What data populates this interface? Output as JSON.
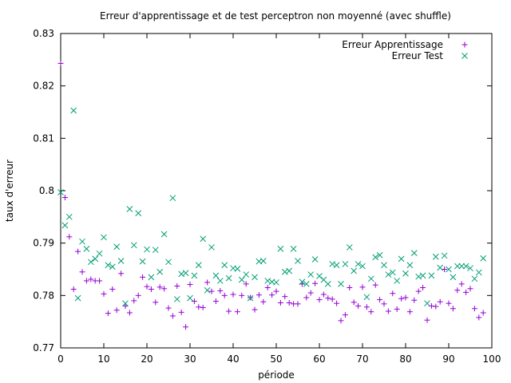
{
  "chart_data": {
    "type": "scatter",
    "title": "Erreur d'apprentissage et de test perceptron non moyenné (avec shuffle)",
    "xlabel": "période",
    "ylabel": "taux d'erreur",
    "xlim": [
      0,
      100
    ],
    "ylim": [
      0.77,
      0.83
    ],
    "x_ticks": [
      0,
      10,
      20,
      30,
      40,
      50,
      60,
      70,
      80,
      90,
      100
    ],
    "x_tick_labels": [
      "0",
      "10",
      "20",
      "30",
      "40",
      "50",
      "60",
      "70",
      "80",
      "90",
      "100"
    ],
    "y_ticks": [
      0.77,
      0.78,
      0.79,
      0.8,
      0.81,
      0.82,
      0.83
    ],
    "y_tick_labels": [
      "0.77",
      "0.78",
      "0.79",
      "0.8",
      "0.81",
      "0.82",
      "0.83"
    ],
    "grid": false,
    "legend_position": "top-right",
    "series": [
      {
        "name": "Erreur Apprentissage",
        "color": "#9400d3",
        "marker": "plus",
        "x": [
          0,
          1,
          2,
          3,
          4,
          5,
          6,
          7,
          8,
          9,
          10,
          11,
          12,
          13,
          14,
          15,
          16,
          17,
          18,
          19,
          20,
          21,
          22,
          23,
          24,
          25,
          26,
          27,
          28,
          29,
          30,
          31,
          32,
          33,
          34,
          35,
          36,
          37,
          38,
          39,
          40,
          41,
          42,
          43,
          44,
          45,
          46,
          47,
          48,
          49,
          50,
          51,
          52,
          53,
          54,
          55,
          56,
          57,
          58,
          59,
          60,
          61,
          62,
          63,
          64,
          65,
          66,
          67,
          68,
          69,
          70,
          71,
          72,
          73,
          74,
          75,
          76,
          77,
          78,
          79,
          80,
          81,
          82,
          83,
          84,
          85,
          86,
          87,
          88,
          89,
          90,
          91,
          92,
          93,
          94,
          95,
          96,
          97,
          98
        ],
        "y": [
          0.8243,
          0.7987,
          0.7912,
          0.7812,
          0.7884,
          0.7845,
          0.7828,
          0.7831,
          0.7828,
          0.7828,
          0.7803,
          0.7766,
          0.7812,
          0.7772,
          0.7842,
          0.778,
          0.7767,
          0.779,
          0.78,
          0.7835,
          0.7817,
          0.7812,
          0.7787,
          0.7816,
          0.7813,
          0.7776,
          0.7761,
          0.7818,
          0.7768,
          0.774,
          0.7821,
          0.7789,
          0.7778,
          0.7777,
          0.7825,
          0.7808,
          0.7789,
          0.7809,
          0.78,
          0.777,
          0.7802,
          0.7769,
          0.78,
          0.7822,
          0.7796,
          0.7773,
          0.7801,
          0.7788,
          0.7815,
          0.7801,
          0.7808,
          0.7786,
          0.7798,
          0.7786,
          0.7784,
          0.7784,
          0.7822,
          0.7796,
          0.7805,
          0.7823,
          0.7792,
          0.7802,
          0.7795,
          0.7793,
          0.7785,
          0.7752,
          0.7763,
          0.7815,
          0.7787,
          0.778,
          0.7816,
          0.7778,
          0.7769,
          0.782,
          0.7792,
          0.7784,
          0.777,
          0.7804,
          0.7774,
          0.7794,
          0.7796,
          0.7769,
          0.7791,
          0.7808,
          0.7815,
          0.7753,
          0.778,
          0.7779,
          0.7788,
          0.785,
          0.7785,
          0.7775,
          0.781,
          0.7822,
          0.7806,
          0.7813,
          0.7775,
          0.7758,
          0.7767
        ]
      },
      {
        "name": "Erreur Test",
        "color": "#009e73",
        "marker": "cross",
        "x": [
          0,
          1,
          2,
          3,
          4,
          5,
          6,
          7,
          8,
          9,
          10,
          11,
          12,
          13,
          14,
          15,
          16,
          17,
          18,
          19,
          20,
          21,
          22,
          23,
          24,
          25,
          26,
          27,
          28,
          29,
          30,
          31,
          32,
          33,
          34,
          35,
          36,
          37,
          38,
          39,
          40,
          41,
          42,
          43,
          44,
          45,
          46,
          47,
          48,
          49,
          50,
          51,
          52,
          53,
          54,
          55,
          56,
          57,
          58,
          59,
          60,
          61,
          62,
          63,
          64,
          65,
          66,
          67,
          68,
          69,
          70,
          71,
          72,
          73,
          74,
          75,
          76,
          77,
          78,
          79,
          80,
          81,
          82,
          83,
          84,
          85,
          86,
          87,
          88,
          89,
          90,
          91,
          92,
          93,
          94,
          95,
          96,
          97,
          98
        ],
        "y": [
          0.7997,
          0.7934,
          0.795,
          0.8153,
          0.7795,
          0.7903,
          0.7889,
          0.7864,
          0.787,
          0.788,
          0.7911,
          0.7858,
          0.7855,
          0.7893,
          0.7866,
          0.7785,
          0.7965,
          0.7896,
          0.7957,
          0.7865,
          0.7888,
          0.7835,
          0.7887,
          0.7845,
          0.7917,
          0.7864,
          0.7986,
          0.7793,
          0.7841,
          0.7843,
          0.7795,
          0.7838,
          0.7858,
          0.7908,
          0.781,
          0.7892,
          0.7838,
          0.7828,
          0.7858,
          0.7833,
          0.7852,
          0.7851,
          0.783,
          0.784,
          0.7795,
          0.7835,
          0.7865,
          0.7866,
          0.7828,
          0.7826,
          0.7825,
          0.7889,
          0.7845,
          0.7847,
          0.7889,
          0.7866,
          0.7826,
          0.7822,
          0.784,
          0.7869,
          0.7837,
          0.783,
          0.7822,
          0.786,
          0.7858,
          0.7822,
          0.786,
          0.7892,
          0.7847,
          0.786,
          0.7856,
          0.7797,
          0.7832,
          0.7873,
          0.7877,
          0.7858,
          0.784,
          0.7844,
          0.7828,
          0.787,
          0.7842,
          0.7858,
          0.7881,
          0.7836,
          0.7838,
          0.7785,
          0.7838,
          0.7874,
          0.7853,
          0.7876,
          0.785,
          0.7835,
          0.7856,
          0.7856,
          0.7856,
          0.7852,
          0.7832,
          0.7844,
          0.7871
        ]
      }
    ]
  }
}
